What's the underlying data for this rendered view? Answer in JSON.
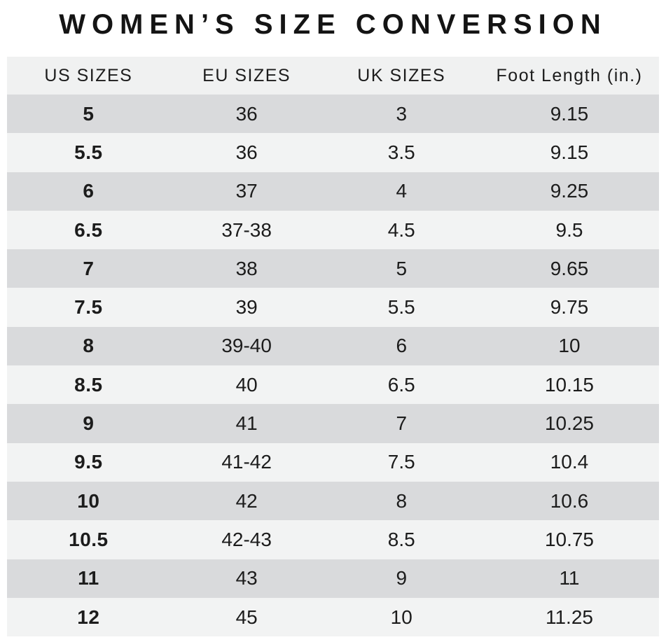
{
  "title": "WOMEN’S SIZE CONVERSION",
  "table": {
    "columns": [
      "US SIZES",
      "EU SIZES",
      "UK SIZES",
      "Foot Length (in.)"
    ],
    "rows": [
      [
        "5",
        "36",
        "3",
        "9.15"
      ],
      [
        "5.5",
        "36",
        "3.5",
        "9.15"
      ],
      [
        "6",
        "37",
        "4",
        "9.25"
      ],
      [
        "6.5",
        "37-38",
        "4.5",
        "9.5"
      ],
      [
        "7",
        "38",
        "5",
        "9.65"
      ],
      [
        "7.5",
        "39",
        "5.5",
        "9.75"
      ],
      [
        "8",
        "39-40",
        "6",
        "10"
      ],
      [
        "8.5",
        "40",
        "6.5",
        "10.15"
      ],
      [
        "9",
        "41",
        "7",
        "10.25"
      ],
      [
        "9.5",
        "41-42",
        "7.5",
        "10.4"
      ],
      [
        "10",
        "42",
        "8",
        "10.6"
      ],
      [
        "10.5",
        "42-43",
        "8.5",
        "10.75"
      ],
      [
        "11",
        "43",
        "9",
        "11"
      ],
      [
        "12",
        "45",
        "10",
        "11.25"
      ]
    ]
  },
  "colors": {
    "row_dark": "#d9dadc",
    "row_light": "#f2f3f3",
    "header_bg": "#f0f1f1",
    "text": "#1c1c1c"
  }
}
